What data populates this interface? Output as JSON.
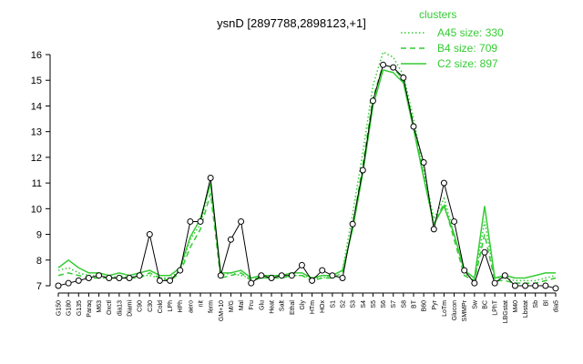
{
  "chart_data": {
    "type": "line",
    "title": "ysnD [2897788,2898123,+1]",
    "categories": [
      "G150",
      "G180",
      "G135",
      "Paraq",
      "M63",
      "Oxctl",
      "dia13",
      "Diami",
      "C90",
      "C30",
      "Cold",
      "LPh",
      "HPh",
      "aero",
      "nit",
      "ferm",
      "GM+10",
      "M/G",
      "Mal",
      "Fru",
      "Glu",
      "Heat",
      "Salt",
      "Ethal",
      "Gly",
      "HTm",
      "HOx",
      "S1",
      "S2",
      "S3",
      "S4",
      "S5",
      "S6",
      "S7",
      "S8",
      "BT",
      "B60",
      "Pyr",
      "LoTm",
      "Glucon",
      "SMMPr",
      "Sw",
      "BC",
      "LPhT",
      "LBGstat",
      "M40",
      "Lbstat",
      "Sb",
      "Bl",
      "dia5"
    ],
    "values": [
      7.0,
      7.1,
      7.2,
      7.3,
      7.4,
      7.3,
      7.3,
      7.3,
      7.4,
      9.0,
      7.2,
      7.2,
      7.6,
      9.5,
      9.5,
      11.2,
      7.4,
      8.8,
      9.5,
      7.1,
      7.4,
      7.3,
      7.4,
      7.4,
      7.8,
      7.2,
      7.6,
      7.4,
      7.3,
      9.4,
      11.5,
      14.2,
      15.6,
      15.5,
      15.1,
      13.2,
      11.8,
      9.2,
      11.0,
      9.5,
      7.6,
      7.1,
      8.3,
      7.1,
      7.4,
      7.0,
      7.0,
      7.0,
      7.0,
      6.9
    ],
    "color": "#000000",
    "legend_title": "clusters",
    "series": [
      {
        "name": "A45 size: 330",
        "color": "#33cc33",
        "linestyle": "dotted",
        "values": [
          7.6,
          7.7,
          7.5,
          7.4,
          7.4,
          7.3,
          7.4,
          7.3,
          7.4,
          7.4,
          7.3,
          7.3,
          7.6,
          8.8,
          9.4,
          11.0,
          7.4,
          7.5,
          7.4,
          7.3,
          7.3,
          7.3,
          7.3,
          7.4,
          7.4,
          7.3,
          7.3,
          7.4,
          7.6,
          9.8,
          12.2,
          14.8,
          16.1,
          15.9,
          15.2,
          13.5,
          11.5,
          9.6,
          10.4,
          9.0,
          7.5,
          7.2,
          9.5,
          7.3,
          7.3,
          7.2,
          7.2,
          7.2,
          7.3,
          7.4
        ]
      },
      {
        "name": "B4 size: 709",
        "color": "#33cc33",
        "linestyle": "dashed",
        "values": [
          7.4,
          7.5,
          7.4,
          7.3,
          7.3,
          7.3,
          7.3,
          7.3,
          7.3,
          7.5,
          7.3,
          7.2,
          7.5,
          8.5,
          9.2,
          10.6,
          7.3,
          7.4,
          7.5,
          7.2,
          7.3,
          7.3,
          7.3,
          7.4,
          7.4,
          7.2,
          7.3,
          7.3,
          7.5,
          9.3,
          11.7,
          14.3,
          15.6,
          15.5,
          15.0,
          13.3,
          11.3,
          9.4,
          10.2,
          8.8,
          7.4,
          7.2,
          9.0,
          7.2,
          7.2,
          7.1,
          7.1,
          7.1,
          7.2,
          7.3
        ]
      },
      {
        "name": "C2 size: 897",
        "color": "#33cc33",
        "linestyle": "solid",
        "values": [
          7.7,
          8.0,
          7.7,
          7.5,
          7.5,
          7.4,
          7.5,
          7.4,
          7.5,
          7.6,
          7.4,
          7.4,
          7.7,
          8.9,
          9.6,
          11.0,
          7.5,
          7.5,
          7.6,
          7.3,
          7.4,
          7.4,
          7.4,
          7.5,
          7.5,
          7.3,
          7.4,
          7.4,
          7.6,
          9.2,
          11.4,
          14.0,
          15.4,
          15.3,
          14.9,
          13.1,
          11.2,
          9.4,
          10.1,
          9.0,
          7.6,
          7.3,
          10.1,
          7.3,
          7.4,
          7.3,
          7.3,
          7.4,
          7.5,
          7.5
        ]
      }
    ],
    "ylim": [
      7,
      16
    ],
    "yticks": [
      7,
      8,
      9,
      10,
      11,
      12,
      13,
      14,
      15,
      16
    ]
  }
}
